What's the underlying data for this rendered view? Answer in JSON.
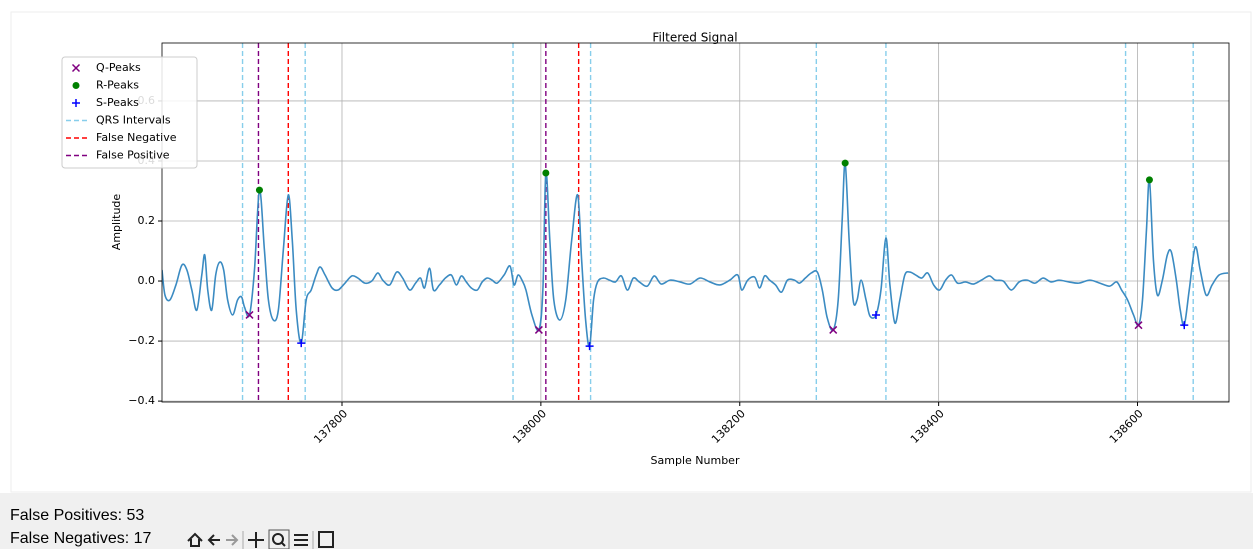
{
  "chart_data": {
    "type": "line",
    "title": "Filtered Signal",
    "xlabel": "Sample Number",
    "ylabel": "Amplitude",
    "color": "#3b8bc2",
    "x": [
      137619,
      137622,
      137627,
      137633,
      137639,
      137644,
      137649,
      137654,
      137659,
      137662,
      137665,
      137669,
      137673,
      137677,
      137681,
      137685,
      137690,
      137695,
      137699,
      137702,
      137707,
      137712,
      137717,
      137722,
      137726,
      137731,
      137736,
      137741,
      137746,
      137750,
      137754,
      137759,
      137764,
      137769,
      137774,
      137778,
      137783,
      137790,
      137796,
      137803,
      137810,
      137816,
      137823,
      137830,
      137836,
      137841,
      137848,
      137855,
      137861,
      137868,
      137874,
      137879,
      137883,
      137888,
      137892,
      137898,
      137904,
      137910,
      137915,
      137920,
      137925,
      137930,
      137936,
      137941,
      137946,
      137951,
      137956,
      137963,
      137969,
      137973,
      137977,
      137981,
      137985,
      137991,
      137998,
      138002,
      138005,
      138009,
      138013,
      138019,
      138025,
      138031,
      138037,
      138041,
      138045,
      138049,
      138053,
      138057,
      138063,
      138069,
      138075,
      138081,
      138087,
      138093,
      138099,
      138107,
      138114,
      138121,
      138130,
      138140,
      138150,
      138160,
      138170,
      138180,
      138190,
      138198,
      138202,
      138208,
      138215,
      138220,
      138225,
      138230,
      138236,
      138242,
      138248,
      138255,
      138260,
      138266,
      138272,
      138278,
      138283,
      138288,
      138294,
      138299,
      138303,
      138306,
      138310,
      138314,
      138318,
      138322,
      138327,
      138331,
      138337,
      138342,
      138347,
      138351,
      138356,
      138361,
      138366,
      138371,
      138377,
      138383,
      138389,
      138395,
      138401,
      138407,
      138413,
      138419,
      138427,
      138435,
      138443,
      138451,
      138457,
      138465,
      138473,
      138481,
      138489,
      138497,
      138505,
      138513,
      138521,
      138531,
      138541,
      138552,
      138562,
      138572,
      138579,
      138584,
      138590,
      138596,
      138601,
      138605,
      138609,
      138612,
      138616,
      138620,
      138625,
      138630,
      138634,
      138639,
      138643,
      138647,
      138652,
      138658,
      138663,
      138669,
      138675,
      138682,
      138691
    ],
    "values": [
      0.037,
      -0.047,
      -0.063,
      -0.013,
      0.053,
      0.037,
      -0.03,
      -0.097,
      0.02,
      0.087,
      -0.03,
      -0.097,
      0.02,
      0.063,
      0.037,
      -0.063,
      -0.113,
      -0.063,
      -0.053,
      -0.087,
      -0.113,
      0.037,
      0.303,
      0.103,
      -0.063,
      -0.13,
      -0.097,
      0.103,
      0.287,
      0.137,
      -0.097,
      -0.207,
      -0.063,
      -0.03,
      0.02,
      0.047,
      0.02,
      -0.023,
      -0.03,
      -0.007,
      0.017,
      0.01,
      -0.007,
      0,
      0.027,
      0.003,
      -0.013,
      0.03,
      0.01,
      -0.03,
      -0.007,
      0.01,
      -0.023,
      0.043,
      -0.03,
      -0.013,
      0.01,
      0.02,
      -0.013,
      0.017,
      -0.003,
      -0.023,
      -0.03,
      -0.003,
      0.01,
      0.003,
      -0.007,
      0.02,
      0.05,
      -0.013,
      0.02,
      0.003,
      -0.03,
      -0.113,
      -0.163,
      -0.03,
      0.36,
      0.137,
      -0.063,
      -0.13,
      -0.063,
      0.137,
      0.287,
      0.07,
      -0.13,
      -0.217,
      -0.063,
      -0.003,
      0.01,
      0.003,
      -0.003,
      0.017,
      -0.03,
      0.01,
      -0.003,
      -0.017,
      0.017,
      -0.01,
      0.003,
      -0.003,
      -0.01,
      0.01,
      -0.003,
      -0.013,
      0.003,
      0.02,
      -0.03,
      0.003,
      0.013,
      -0.023,
      0.017,
      0.003,
      -0.013,
      -0.037,
      0.003,
      0.003,
      -0.007,
      0.01,
      0.027,
      0.03,
      -0.03,
      -0.123,
      -0.163,
      -0.063,
      0.203,
      0.393,
      0.137,
      -0.063,
      -0.063,
      0.003,
      -0.063,
      -0.117,
      -0.113,
      -0.03,
      0.143,
      -0.013,
      -0.14,
      -0.063,
      0.02,
      0.03,
      0.02,
      0.01,
      0.027,
      -0.013,
      -0.03,
      0.003,
      0.02,
      -0.007,
      -0.003,
      -0.01,
      0.003,
      0.017,
      0.003,
      0,
      -0.03,
      -0.003,
      0.003,
      -0.007,
      0.01,
      -0.003,
      0.003,
      -0.003,
      -0.007,
      0.003,
      -0.007,
      -0.017,
      -0.003,
      -0.03,
      -0.063,
      -0.113,
      -0.147,
      -0.063,
      0.17,
      0.337,
      0.07,
      -0.047,
      0.003,
      0.087,
      0.097,
      0.003,
      -0.097,
      -0.147,
      -0.03,
      0.113,
      0.037,
      -0.047,
      -0.013,
      0.02,
      0.027
    ],
    "markers": [
      {
        "name": "Q-Peaks",
        "color": "purple",
        "marker": "x",
        "x": [
          137707,
          137998,
          138294,
          138601
        ],
        "values": [
          -0.113,
          -0.163,
          -0.163,
          -0.147
        ]
      },
      {
        "name": "R-Peaks",
        "color": "green",
        "marker": "o",
        "x": [
          137717,
          138005,
          138306,
          138612
        ],
        "values": [
          0.303,
          0.36,
          0.393,
          0.337
        ]
      },
      {
        "name": "S-Peaks",
        "color": "blue",
        "marker": "+",
        "x": [
          137759,
          138049,
          138337,
          138647
        ],
        "values": [
          -0.207,
          -0.217,
          -0.113,
          -0.147
        ]
      }
    ],
    "vlines": [
      {
        "name": "QRS Intervals",
        "color": "#87ceeb",
        "x": [
          137700,
          137763,
          137972,
          138050,
          138277,
          138347,
          138588,
          138656
        ]
      },
      {
        "name": "False Negative",
        "color": "red",
        "x": [
          137746,
          138038
        ]
      },
      {
        "name": "False Positive",
        "color": "purple",
        "x": [
          137716,
          138005
        ]
      }
    ],
    "xlim": [
      137619,
      138692
    ],
    "xticks": [
      137800,
      138000,
      138200,
      138400,
      138600
    ],
    "ylim": [
      -0.403,
      0.793
    ],
    "yticks": [
      {
        "value": -0.4,
        "label": "−0.4"
      },
      {
        "value": -0.2,
        "label": "−0.2"
      },
      {
        "value": 0,
        "label": "0.0"
      },
      0.2,
      0.4,
      0.6
    ],
    "grid": true,
    "legend": "upper left"
  },
  "status": [
    "False Positives: 53",
    "False Negatives: 17"
  ]
}
